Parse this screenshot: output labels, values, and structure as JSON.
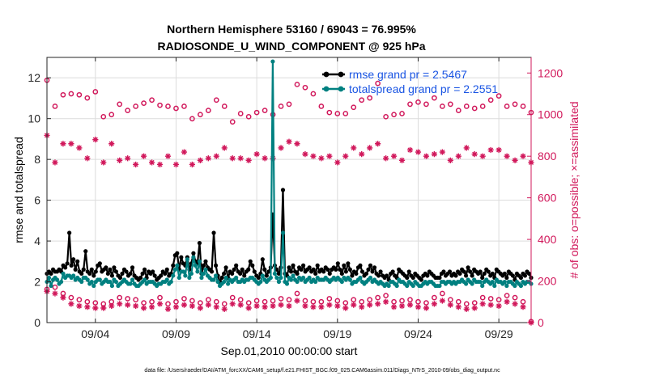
{
  "chart_data": {
    "type": "line",
    "title_line1": "Northern Hemisphere 53160 / 69043 = 76.995%",
    "title_line2": "RADIOSONDE_U_WIND_COMPONENT @ 925 hPa",
    "xlabel": "Sep.01,2010 00:00:00 start",
    "ylabel_left": "rmse and totalspread",
    "ylabel_right": "# of obs: o=possible; ×=assimilated",
    "footnote": "data file: /Users/raeder/DAI/ATM_forcXX/CAM6_setup/f.e21.FHIST_BGC.f09_025.CAM6assim.011/Diags_NTrS_2010-09/obs_diag_output.nc",
    "xlim": [
      0,
      60
    ],
    "ylim_left": [
      0,
      13
    ],
    "ylim_right": [
      0,
      1275
    ],
    "grid": true,
    "x_ticks": [
      {
        "x": 6,
        "label": "09/04"
      },
      {
        "x": 16,
        "label": "09/09"
      },
      {
        "x": 26,
        "label": "09/14"
      },
      {
        "x": 36,
        "label": "09/19"
      },
      {
        "x": 46,
        "label": "09/24"
      },
      {
        "x": 56,
        "label": "09/29"
      }
    ],
    "y_ticks_left": [
      {
        "v": 0,
        "label": "0"
      },
      {
        "v": 2,
        "label": "2"
      },
      {
        "v": 4,
        "label": "4"
      },
      {
        "v": 6,
        "label": "6"
      },
      {
        "v": 8,
        "label": "8"
      },
      {
        "v": 10,
        "label": "10"
      },
      {
        "v": 12,
        "label": "12"
      }
    ],
    "y_ticks_right": [
      {
        "v": 0,
        "label": "0"
      },
      {
        "v": 200,
        "label": "200"
      },
      {
        "v": 400,
        "label": "400"
      },
      {
        "v": 600,
        "label": "600"
      },
      {
        "v": 800,
        "label": "800"
      },
      {
        "v": 1000,
        "label": "1000"
      },
      {
        "v": 1200,
        "label": "1200"
      }
    ],
    "legend": [
      {
        "label": "rmse grand pr = 2.5467",
        "color": "#000000"
      },
      {
        "label": "totalspread grand pr = 2.2551",
        "color": "#008080"
      }
    ],
    "colors": {
      "rmse": "#000000",
      "spread": "#008080",
      "obs": "#d1185b"
    },
    "series": [
      {
        "name": "rmse",
        "axis": "left",
        "values": [
          2.4,
          2.5,
          2.4,
          2.6,
          2.5,
          2.5,
          2.6,
          2.5,
          2.8,
          2.7,
          2.9,
          4.4,
          2.8,
          3.1,
          2.6,
          3.0,
          2.5,
          2.4,
          2.6,
          3.5,
          2.5,
          2.4,
          2.6,
          2.3,
          2.5,
          2.8,
          2.9,
          2.5,
          2.6,
          2.7,
          2.4,
          2.6,
          2.3,
          2.7,
          2.5,
          2.3,
          2.2,
          2.4,
          2.6,
          2.5,
          2.3,
          2.4,
          2.7,
          2.3,
          2.2,
          2.1,
          2.2,
          2.4,
          2.6,
          2.2,
          2.5,
          2.4,
          2.5,
          2.3,
          2.1,
          2.2,
          2.3,
          2.5,
          2.4,
          2.6,
          2.3,
          2.4,
          2.8,
          3.3,
          3.4,
          2.6,
          3.2,
          2.9,
          2.8,
          3.2,
          2.6,
          2.9,
          3.4,
          3.0,
          2.9,
          3.9,
          2.4,
          2.8,
          3.0,
          2.7,
          2.6,
          2.5,
          4.4,
          2.8,
          2.3,
          2.0,
          2.2,
          2.4,
          2.7,
          2.2,
          2.5,
          2.4,
          2.6,
          2.8,
          2.5,
          2.4,
          2.6,
          2.3,
          2.5,
          2.6,
          3.0,
          2.8,
          2.5,
          2.3,
          2.2,
          2.4,
          3.1,
          2.6,
          2.3,
          2.5,
          2.7,
          5.3,
          2.8,
          2.6,
          2.4,
          2.7,
          6.5,
          2.4,
          2.3,
          2.7,
          2.5,
          2.8,
          2.5,
          2.4,
          2.7,
          2.6,
          2.8,
          2.5,
          2.6,
          2.7,
          2.5,
          2.6,
          2.4,
          2.8,
          2.5,
          2.6,
          2.5,
          2.7,
          2.6,
          2.4,
          2.6,
          2.7,
          2.6,
          2.9,
          2.6,
          2.4,
          2.8,
          2.5,
          2.9,
          2.6,
          2.3,
          2.5,
          2.4,
          2.7,
          2.8,
          2.5,
          2.3,
          2.4,
          2.6,
          2.8,
          2.5,
          2.7,
          2.4,
          2.3,
          2.5,
          2.3,
          2.2,
          2.3,
          2.1,
          2.4,
          2.5,
          2.3,
          2.2,
          2.6,
          2.5,
          2.4,
          2.3,
          2.2,
          2.5,
          2.3,
          2.2,
          2.4,
          2.3,
          2.2,
          2.1,
          2.3,
          2.4,
          2.3,
          2.5,
          2.4,
          2.3,
          2.2,
          2.2,
          2.2,
          2.4,
          2.5,
          2.3,
          2.4,
          2.5,
          2.3,
          2.4,
          2.3,
          2.5,
          2.4,
          2.6,
          2.5,
          2.3,
          2.7,
          2.5,
          2.3,
          2.6,
          2.5,
          2.4,
          2.5,
          2.2,
          2.4,
          2.6,
          2.5,
          2.3,
          2.4,
          2.2,
          2.6,
          2.5,
          2.4,
          2.3,
          2.4,
          2.2,
          2.5,
          2.4,
          2.3,
          2.1,
          2.4,
          2.3,
          2.2,
          2.4,
          2.3,
          2.5,
          2.4,
          2.2
        ]
      },
      {
        "name": "totalspread",
        "axis": "left",
        "values": [
          2.0,
          2.2,
          1.8,
          2.1,
          2.2,
          2.1,
          1.9,
          2.0,
          2.4,
          2.2,
          2.3,
          2.3,
          2.2,
          2.3,
          2.1,
          2.2,
          2.1,
          2.0,
          2.2,
          2.2,
          2.1,
          1.9,
          2.0,
          1.8,
          2.0,
          2.1,
          2.1,
          1.9,
          2.0,
          2.1,
          2.0,
          2.0,
          1.8,
          2.1,
          2.0,
          1.8,
          1.9,
          2.0,
          2.1,
          2.0,
          1.9,
          1.9,
          2.1,
          1.9,
          1.8,
          1.8,
          1.9,
          2.0,
          2.1,
          1.9,
          2.0,
          2.0,
          2.0,
          1.9,
          1.8,
          1.9,
          1.9,
          2.0,
          2.0,
          2.1,
          1.9,
          2.0,
          2.3,
          2.6,
          2.8,
          2.2,
          2.5,
          2.5,
          2.3,
          3.1,
          2.2,
          2.4,
          3.2,
          2.8,
          2.5,
          3.0,
          2.2,
          2.4,
          2.6,
          2.3,
          2.2,
          2.1,
          2.1,
          2.3,
          2.0,
          1.8,
          1.9,
          2.0,
          2.2,
          1.9,
          2.1,
          2.0,
          2.1,
          2.2,
          2.0,
          2.0,
          2.1,
          2.0,
          2.1,
          2.1,
          2.2,
          2.2,
          2.1,
          2.0,
          1.9,
          2.0,
          2.3,
          2.1,
          2.0,
          2.1,
          2.2,
          12.8,
          2.4,
          2.2,
          2.0,
          2.2,
          4.4,
          2.0,
          1.9,
          2.2,
          2.1,
          2.3,
          2.1,
          2.0,
          2.2,
          2.1,
          2.2,
          2.0,
          2.1,
          2.2,
          2.0,
          2.1,
          2.0,
          2.2,
          2.1,
          2.1,
          2.1,
          2.2,
          2.1,
          2.0,
          2.1,
          2.2,
          2.1,
          2.2,
          2.1,
          2.0,
          2.2,
          2.1,
          2.2,
          2.1,
          1.9,
          2.0,
          2.0,
          2.1,
          2.2,
          2.0,
          1.9,
          2.0,
          2.1,
          2.2,
          2.0,
          2.1,
          2.0,
          1.9,
          2.0,
          1.9,
          1.8,
          1.9,
          1.8,
          2.0,
          2.0,
          1.9,
          1.8,
          2.1,
          2.0,
          2.0,
          1.9,
          1.8,
          2.0,
          1.9,
          1.8,
          2.0,
          1.9,
          1.8,
          1.8,
          1.9,
          2.0,
          1.9,
          2.0,
          2.0,
          1.9,
          1.8,
          1.8,
          1.8,
          2.0,
          2.0,
          1.9,
          2.0,
          2.0,
          1.9,
          2.0,
          1.9,
          2.0,
          2.0,
          2.1,
          2.0,
          1.9,
          2.1,
          2.0,
          1.9,
          2.1,
          2.0,
          2.0,
          2.0,
          1.8,
          2.0,
          2.1,
          2.0,
          1.9,
          2.0,
          1.8,
          2.1,
          2.0,
          2.0,
          1.9,
          2.0,
          1.8,
          2.0,
          2.0,
          1.9,
          1.8,
          2.0,
          1.9,
          1.8,
          2.0,
          1.9,
          2.0,
          2.0,
          1.9
        ]
      },
      {
        "name": "possible_day",
        "axis": "right",
        "marker": "circle",
        "values": [
          1165,
          1040,
          1095,
          1100,
          1095,
          1080,
          1110,
          990,
          1000,
          1050,
          1020,
          1040,
          1055,
          1070,
          1045,
          1040,
          1030,
          1040,
          980,
          1000,
          1020,
          1070,
          1040,
          965,
          1005,
          990,
          1010,
          1020,
          1000,
          1040,
          1050,
          1145,
          1130,
          1100,
          1040,
          1010,
          1005,
          1005,
          1035,
          1070,
          1080,
          1150,
          990,
          1000,
          1005,
          1050,
          1060,
          1050,
          1080,
          1040,
          1050,
          1020,
          1040,
          1030,
          1040,
          1070,
          1090,
          1040,
          1050,
          1040,
          1010
        ]
      },
      {
        "name": "possible_night",
        "axis": "right",
        "marker": "circle",
        "values": [
          160,
          170,
          140,
          120,
          110,
          100,
          95,
          90,
          100,
          120,
          115,
          110,
          95,
          100,
          120,
          90,
          100,
          115,
          105,
          95,
          110,
          100,
          90,
          120,
          110,
          95,
          105,
          100,
          105,
          115,
          110,
          140,
          105,
          100,
          100,
          115,
          105,
          95,
          110,
          100,
          110,
          120,
          130,
          100,
          105,
          110,
          100,
          95,
          120,
          140,
          110,
          100,
          90,
          95,
          120,
          115,
          110,
          130,
          120,
          100,
          5
        ]
      },
      {
        "name": "assimilated_day",
        "axis": "right",
        "marker": "asterisk",
        "values": [
          900,
          770,
          860,
          860,
          840,
          790,
          880,
          770,
          860,
          780,
          790,
          760,
          800,
          770,
          760,
          800,
          760,
          820,
          760,
          780,
          790,
          800,
          840,
          790,
          790,
          780,
          810,
          790,
          790,
          840,
          870,
          860,
          810,
          800,
          790,
          800,
          770,
          800,
          840,
          810,
          840,
          860,
          790,
          800,
          780,
          830,
          820,
          800,
          810,
          820,
          780,
          800,
          840,
          810,
          800,
          830,
          830,
          800,
          780,
          800,
          770
        ]
      },
      {
        "name": "assimilated_night",
        "axis": "right",
        "marker": "asterisk",
        "values": [
          150,
          140,
          120,
          90,
          80,
          75,
          70,
          70,
          80,
          90,
          85,
          80,
          70,
          75,
          90,
          65,
          75,
          85,
          80,
          70,
          85,
          75,
          65,
          90,
          85,
          70,
          80,
          75,
          80,
          85,
          80,
          105,
          80,
          75,
          75,
          85,
          80,
          70,
          85,
          75,
          85,
          90,
          100,
          75,
          80,
          85,
          75,
          70,
          90,
          105,
          85,
          75,
          65,
          70,
          90,
          85,
          80,
          100,
          90,
          75,
          0
        ]
      }
    ]
  }
}
